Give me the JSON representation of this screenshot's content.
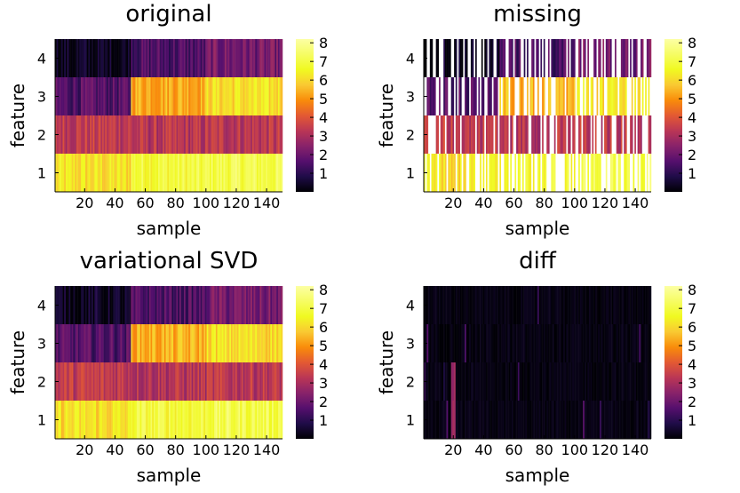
{
  "colormap": "inferno",
  "chart_data": [
    {
      "type": "heatmap",
      "title": "original",
      "xlabel": "sample",
      "ylabel": "feature",
      "x_range": [
        1,
        150
      ],
      "x_ticks": [
        "20",
        "40",
        "60",
        "80",
        "100",
        "120",
        "140"
      ],
      "y_ticks": [
        "1",
        "2",
        "3",
        "4"
      ],
      "color_range": [
        0,
        8.2
      ],
      "colorbar_ticks": [
        "1",
        "2",
        "3",
        "4",
        "5",
        "6",
        "7",
        "8"
      ],
      "description_values": {
        "feature_1": {
          "samples_1_50": 6.1,
          "samples_51_100": 6.9,
          "samples_101_150": 7.1
        },
        "feature_2": {
          "samples_1_50": 3.4,
          "samples_51_100": 3.2,
          "samples_101_150": 3.3
        },
        "feature_3": {
          "samples_1_50": 1.6,
          "samples_51_100": 5.4,
          "samples_101_150": 6.1
        },
        "feature_4": {
          "samples_1_50": 0.3,
          "samples_51_100": 1.5,
          "samples_101_150": 2.1
        }
      },
      "missing_fraction": 0,
      "diff_mode": false
    },
    {
      "type": "heatmap",
      "title": "missing",
      "xlabel": "sample",
      "ylabel": "feature",
      "x_range": [
        1,
        150
      ],
      "x_ticks": [
        "20",
        "40",
        "60",
        "80",
        "100",
        "120",
        "140"
      ],
      "y_ticks": [
        "1",
        "2",
        "3",
        "4"
      ],
      "color_range": [
        0,
        8.2
      ],
      "colorbar_ticks": [
        "1",
        "2",
        "3",
        "4",
        "5",
        "6",
        "7",
        "8"
      ],
      "description_values": {
        "feature_1": {
          "samples_1_50": 6.1,
          "samples_51_100": 6.9,
          "samples_101_150": 7.1
        },
        "feature_2": {
          "samples_1_50": 3.4,
          "samples_51_100": 3.2,
          "samples_101_150": 3.3
        },
        "feature_3": {
          "samples_1_50": 1.6,
          "samples_51_100": 5.4,
          "samples_101_150": 6.1
        },
        "feature_4": {
          "samples_1_50": 0.3,
          "samples_51_100": 1.5,
          "samples_101_150": 2.1
        }
      },
      "missing_fraction": 0.35,
      "diff_mode": false
    },
    {
      "type": "heatmap",
      "title": "variational SVD",
      "xlabel": "sample",
      "ylabel": "feature",
      "x_range": [
        1,
        150
      ],
      "x_ticks": [
        "20",
        "40",
        "60",
        "80",
        "100",
        "120",
        "140"
      ],
      "y_ticks": [
        "1",
        "2",
        "3",
        "4"
      ],
      "color_range": [
        0,
        8.2
      ],
      "colorbar_ticks": [
        "1",
        "2",
        "3",
        "4",
        "5",
        "6",
        "7",
        "8"
      ],
      "description_values": {
        "feature_1": {
          "samples_1_50": 6.1,
          "samples_51_100": 6.9,
          "samples_101_150": 7.1
        },
        "feature_2": {
          "samples_1_50": 3.4,
          "samples_51_100": 3.2,
          "samples_101_150": 3.3
        },
        "feature_3": {
          "samples_1_50": 1.6,
          "samples_51_100": 5.4,
          "samples_101_150": 6.1
        },
        "feature_4": {
          "samples_1_50": 0.3,
          "samples_51_100": 1.5,
          "samples_101_150": 2.1
        }
      },
      "missing_fraction": 0,
      "diff_mode": false
    },
    {
      "type": "heatmap",
      "title": "diff",
      "xlabel": "sample",
      "ylabel": "feature",
      "x_range": [
        1,
        150
      ],
      "x_ticks": [
        "20",
        "40",
        "60",
        "80",
        "100",
        "120",
        "140"
      ],
      "y_ticks": [
        "1",
        "2",
        "3",
        "4"
      ],
      "color_range": [
        0,
        8.2
      ],
      "colorbar_ticks": [
        "1",
        "2",
        "3",
        "4",
        "5",
        "6",
        "7",
        "8"
      ],
      "description_values": {
        "all_features": {
          "typical_abs_diff": 0.2,
          "max_abs_diff": 3.1
        }
      },
      "missing_fraction": 0,
      "diff_mode": true
    }
  ]
}
